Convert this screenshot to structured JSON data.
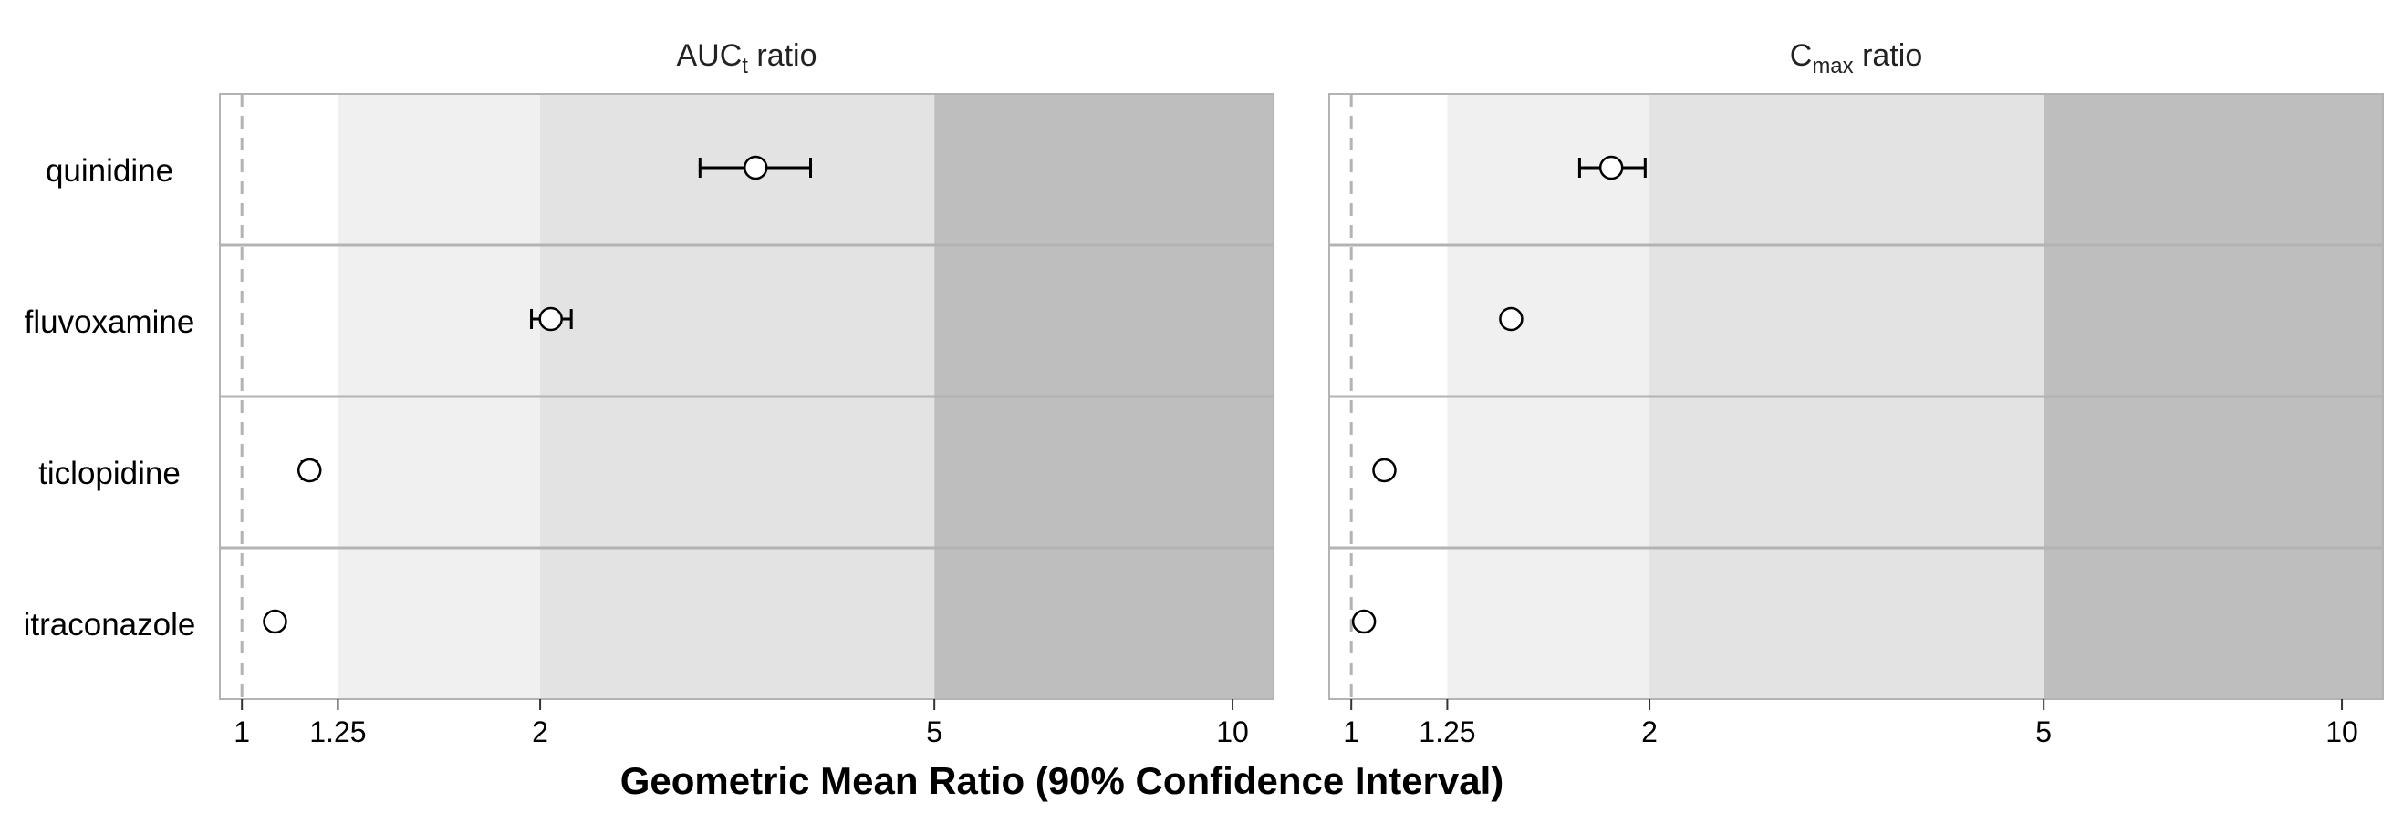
{
  "chart_data": {
    "type": "scatter",
    "xlabel": "Geometric Mean Ratio (90% Confidence Interval)",
    "x_scale": "log",
    "xlim": [
      0.95,
      11
    ],
    "x_ticks": [
      1,
      1.25,
      2,
      5,
      10
    ],
    "x_tick_labels": [
      "1",
      "1.25",
      "2",
      "5",
      "10"
    ],
    "reference_line": 1,
    "shaded_bands": [
      {
        "from": 1.25,
        "to": 2,
        "color": "#f0f0f0"
      },
      {
        "from": 2,
        "to": 5,
        "color": "#e3e3e3"
      },
      {
        "from": 5,
        "to": 11,
        "color": "#bebebe"
      }
    ],
    "categories": [
      "quinidine",
      "fluvoxamine",
      "ticlopidine",
      "itraconazole"
    ],
    "panels": [
      {
        "title_main": "AUC",
        "title_sub": "t",
        "title_rest": " ratio",
        "points": [
          {
            "label": "quinidine",
            "value": 3.3,
            "lower": 2.9,
            "upper": 3.75
          },
          {
            "label": "fluvoxamine",
            "value": 2.05,
            "lower": 1.96,
            "upper": 2.15
          },
          {
            "label": "ticlopidine",
            "value": 1.17,
            "lower": 1.15,
            "upper": 1.19
          },
          {
            "label": "itraconazole",
            "value": 1.08,
            "lower": null,
            "upper": null
          }
        ]
      },
      {
        "title_main": "C",
        "title_sub": "max",
        "title_rest": " ratio",
        "points": [
          {
            "label": "quinidine",
            "value": 1.83,
            "lower": 1.7,
            "upper": 1.98
          },
          {
            "label": "fluvoxamine",
            "value": 1.45,
            "lower": null,
            "upper": null
          },
          {
            "label": "ticlopidine",
            "value": 1.08,
            "lower": null,
            "upper": null
          },
          {
            "label": "itraconazole",
            "value": 1.03,
            "lower": null,
            "upper": null
          }
        ]
      }
    ]
  }
}
